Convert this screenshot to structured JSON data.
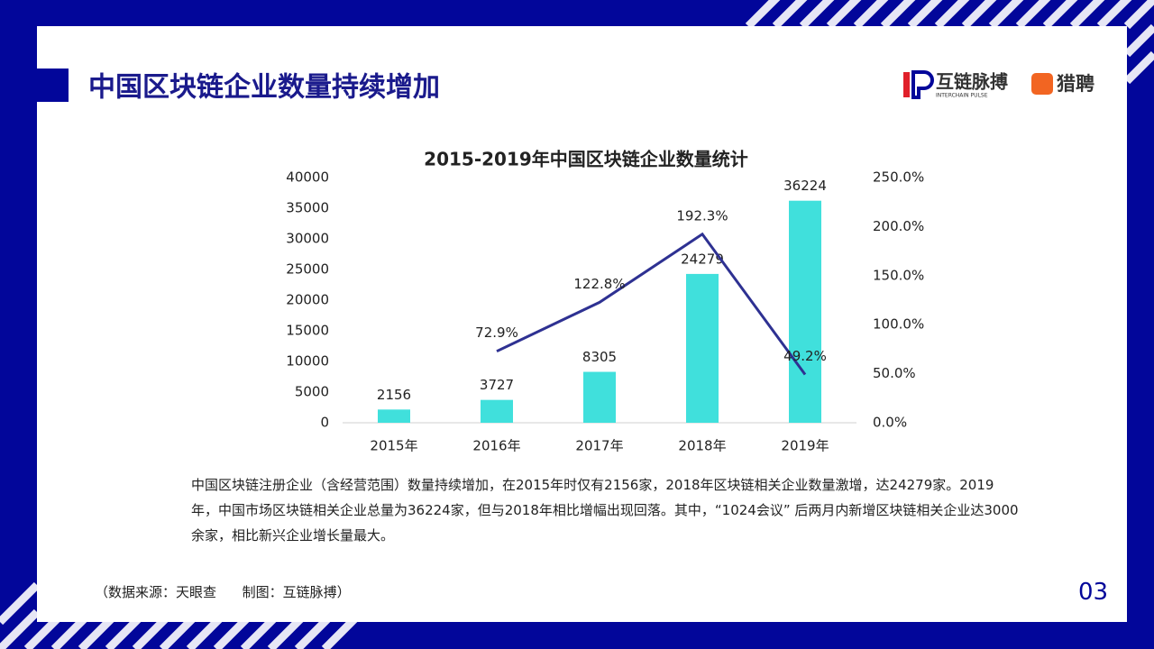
{
  "header": {
    "title": "中国区块链企业数量持续增加",
    "logo_name": "互链脉搏",
    "logo_sub": "INTERCHAIN PULSE",
    "logo2_name": "猎聘"
  },
  "chart_data": {
    "type": "bar",
    "title": "2015-2019年中国区块链企业数量统计",
    "categories": [
      "2015年",
      "2016年",
      "2017年",
      "2018年",
      "2019年"
    ],
    "series": [
      {
        "type": "bar",
        "color": "#40e0dc",
        "values": [
          2156,
          3727,
          8305,
          24279,
          36224
        ]
      },
      {
        "type": "line",
        "axis": "y2",
        "color": "#2e3192",
        "values": [
          null,
          72.9,
          122.8,
          192.3,
          49.2
        ],
        "value_labels": [
          null,
          "72.9%",
          "122.8%",
          "192.3%",
          "49.2%"
        ]
      }
    ],
    "ylim": [
      0,
      40000
    ],
    "yticks": [
      0,
      5000,
      10000,
      15000,
      20000,
      25000,
      30000,
      35000,
      40000
    ],
    "y2lim": [
      0,
      250
    ],
    "y2ticks": [
      {
        "value": 0,
        "label": "0.0%"
      },
      {
        "value": 50,
        "label": "50.0%"
      },
      {
        "value": 100,
        "label": "100.0%"
      },
      {
        "value": 150,
        "label": "150.0%"
      },
      {
        "value": 200,
        "label": "200.0%"
      },
      {
        "value": 250,
        "label": "250.0%"
      }
    ],
    "grid": false
  },
  "body": "中国区块链注册企业（含经营范围）数量持续增加，在2015年时仅有2156家，2018年区块链相关企业数量激增，达24279家。2019年，中国市场区块链相关企业总量为36224家，但与2018年相比增幅出现回落。其中，“1024会议” 后两月内新增区块链相关企业达3000余家，相比新兴企业增长量最大。",
  "source": "（数据来源：天眼查      制图：互链脉搏）",
  "page_number": "03"
}
